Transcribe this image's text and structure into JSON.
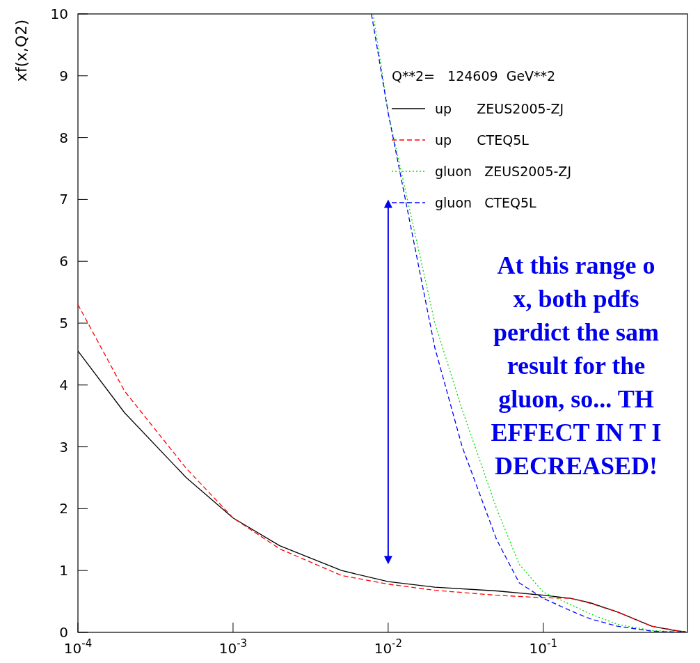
{
  "chart_data": {
    "type": "line",
    "ylabel": "xf(x,Q2)",
    "legend_title": "Q**2=   124609  GeV**2",
    "legend": "top right",
    "log": "x",
    "xlim": [
      0.0001,
      0.85
    ],
    "ylim": [
      0,
      10
    ],
    "xticks": [
      {
        "value": 0.0001,
        "label": "10$^{-4}$"
      },
      {
        "value": 0.001,
        "label": "10$^{-3}$"
      },
      {
        "value": 0.01,
        "label": "10$^{-2}$"
      },
      {
        "value": 0.1,
        "label": "10$^{-1}$"
      }
    ],
    "yticks": [
      0,
      1,
      2,
      3,
      4,
      5,
      6,
      7,
      8,
      9,
      10
    ],
    "series": [
      {
        "name": "up      ZEUS2005-ZJ",
        "color": "#000000",
        "line_style": "solid",
        "x": [
          0.0001,
          0.0002,
          0.0005,
          0.001,
          0.002,
          0.005,
          0.01,
          0.02,
          0.05,
          0.1,
          0.15,
          0.2,
          0.3,
          0.5,
          0.7,
          0.83
        ],
        "values": [
          4.55,
          3.55,
          2.5,
          1.85,
          1.4,
          1.0,
          0.82,
          0.73,
          0.67,
          0.6,
          0.55,
          0.48,
          0.33,
          0.1,
          0.03,
          0.01
        ]
      },
      {
        "name": "up      CTEQ5L",
        "color": "#ff0000",
        "line_style": "dashed",
        "x": [
          0.0001,
          0.0002,
          0.0005,
          0.001,
          0.002,
          0.005,
          0.01,
          0.02,
          0.05,
          0.1,
          0.15,
          0.2,
          0.3,
          0.5,
          0.8
        ],
        "values": [
          5.3,
          3.9,
          2.65,
          1.85,
          1.35,
          0.92,
          0.78,
          0.68,
          0.6,
          0.56,
          0.55,
          0.47,
          0.33,
          0.1,
          0.01
        ]
      },
      {
        "name": "gluon   ZEUS2005-ZJ",
        "color": "#00dd00",
        "line_style": "dotted",
        "x": [
          0.008,
          0.01,
          0.02,
          0.03,
          0.05,
          0.07,
          0.1,
          0.15,
          0.2,
          0.3,
          0.5,
          0.8
        ],
        "values": [
          10,
          8.4,
          5.0,
          3.6,
          2.0,
          1.1,
          0.65,
          0.45,
          0.3,
          0.13,
          0.03,
          0
        ]
      },
      {
        "name": "gluon   CTEQ5L",
        "color": "#0000ff",
        "line_style": "dashed",
        "x": [
          0.0078,
          0.01,
          0.02,
          0.03,
          0.05,
          0.07,
          0.1,
          0.15,
          0.2,
          0.3,
          0.5,
          0.8
        ],
        "values": [
          10,
          8.4,
          4.6,
          3.0,
          1.5,
          0.8,
          0.55,
          0.35,
          0.22,
          0.1,
          0.02,
          0
        ]
      }
    ],
    "annotations": [
      "At this range o\nx, both pdfs\nperdict the sam\nresult for the\ngluon, so... TH\nEFFECT IN T I\nDECREASED!"
    ]
  }
}
